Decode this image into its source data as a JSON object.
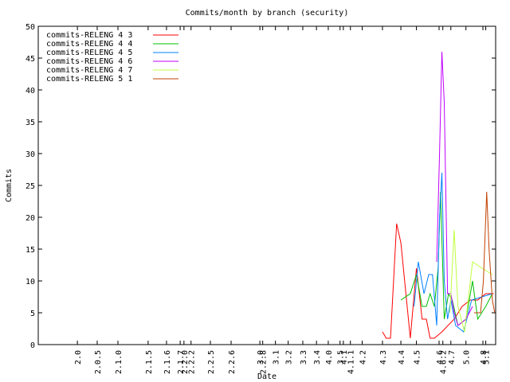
{
  "chart_data": {
    "type": "line",
    "title": "Commits/month by branch (security)",
    "x_label": "Date",
    "y_label": "Commits",
    "xlim": [
      1994.04,
      2003.74
    ],
    "ylim": [
      0,
      50
    ],
    "yticks": [
      0,
      5,
      10,
      15,
      20,
      25,
      30,
      35,
      40,
      45,
      50
    ],
    "xticks": [
      {
        "value": 1994.87,
        "label": "2.0"
      },
      {
        "value": 1995.29,
        "label": "2.0.5"
      },
      {
        "value": 1995.73,
        "label": "2.1.0"
      },
      {
        "value": 1996.37,
        "label": "2.1.5"
      },
      {
        "value": 1996.76,
        "label": "2.1.6"
      },
      {
        "value": 1997.05,
        "label": "2.1.7"
      },
      {
        "value": 1997.13,
        "label": "2.2.0"
      },
      {
        "value": 1997.28,
        "label": "2.2.2"
      },
      {
        "value": 1997.69,
        "label": "2.2.5"
      },
      {
        "value": 1998.13,
        "label": "2.2.6"
      },
      {
        "value": 1998.74,
        "label": "3.0"
      },
      {
        "value": 1998.8,
        "label": "2.2.8"
      },
      {
        "value": 1999.07,
        "label": "3.1"
      },
      {
        "value": 1999.34,
        "label": "3.2"
      },
      {
        "value": 1999.65,
        "label": "3.3"
      },
      {
        "value": 1999.94,
        "label": "3.4"
      },
      {
        "value": 2000.19,
        "label": "4.0"
      },
      {
        "value": 2000.44,
        "label": "3.5"
      },
      {
        "value": 2000.51,
        "label": "4.1"
      },
      {
        "value": 2000.66,
        "label": "4.1.1"
      },
      {
        "value": 2000.91,
        "label": "4.2"
      },
      {
        "value": 2001.34,
        "label": "4.3"
      },
      {
        "value": 2001.73,
        "label": "4.4"
      },
      {
        "value": 2002.06,
        "label": "4.5"
      },
      {
        "value": 2002.54,
        "label": "4.6"
      },
      {
        "value": 2002.62,
        "label": "4.6.2"
      },
      {
        "value": 2002.79,
        "label": "4.7"
      },
      {
        "value": 2003.11,
        "label": "5.0"
      },
      {
        "value": 2003.47,
        "label": "4.8"
      },
      {
        "value": 2003.53,
        "label": "5.1"
      }
    ],
    "series": [
      {
        "name": "commits-RELENG 4 3",
        "color": "#ff0000",
        "x": [
          2001.34,
          2001.42,
          2001.51,
          2001.64,
          2001.73,
          2001.93,
          2002.06,
          2002.18,
          2002.27,
          2002.35,
          2002.44,
          2002.6,
          2002.86,
          2003.03,
          2003.2,
          2003.36,
          2003.53,
          2003.7
        ],
        "values": [
          2,
          1,
          1,
          19,
          16,
          1,
          12,
          4,
          4,
          1,
          1,
          2,
          4,
          6,
          7,
          7,
          8,
          8
        ]
      },
      {
        "name": "commits-RELENG 4 4",
        "color": "#00c000",
        "x": [
          2001.73,
          2001.93,
          2002.06,
          2002.18,
          2002.27,
          2002.35,
          2002.44,
          2002.52,
          2002.57,
          2002.65,
          2002.74,
          2002.82,
          2002.94,
          2003.11,
          2003.25,
          2003.36,
          2003.53,
          2003.67
        ],
        "values": [
          7,
          8,
          11,
          6,
          6,
          8,
          6,
          12,
          24,
          4,
          8,
          7,
          3,
          4,
          10,
          4,
          6,
          8
        ]
      },
      {
        "name": "commits-RELENG 4 5",
        "color": "#0080ff",
        "x": [
          2002.01,
          2002.1,
          2002.22,
          2002.32,
          2002.4,
          2002.49,
          2002.55,
          2002.6,
          2002.65,
          2002.72,
          2002.79,
          2002.89,
          2003.06,
          2003.23,
          2003.45,
          2003.67
        ],
        "values": [
          6,
          13,
          8,
          11,
          11,
          3,
          20,
          27,
          10,
          4,
          7,
          3,
          2,
          7,
          7.5,
          8
        ]
      },
      {
        "name": "commits-RELENG 4 6",
        "color": "#c000ff",
        "x": [
          2002.49,
          2002.55,
          2002.6,
          2002.65,
          2002.72,
          2002.79,
          2002.86,
          2002.94,
          2003.11,
          2003.25
        ],
        "values": [
          13,
          30,
          46,
          38,
          8,
          8,
          5,
          3,
          4,
          6
        ]
      },
      {
        "name": "commits-RELENG 4 7",
        "color": "#c0ff40",
        "x": [
          2002.77,
          2002.86,
          2002.94,
          2003.08,
          2003.25,
          2003.45,
          2003.67
        ],
        "values": [
          5,
          18,
          6,
          2,
          13,
          12,
          11
        ]
      },
      {
        "name": "commits-RELENG 5 1",
        "color": "#c04000",
        "x": [
          2003.28,
          2003.42,
          2003.48,
          2003.55,
          2003.6,
          2003.67,
          2003.72
        ],
        "values": [
          5,
          5,
          10,
          24,
          15,
          7,
          5
        ]
      }
    ]
  }
}
